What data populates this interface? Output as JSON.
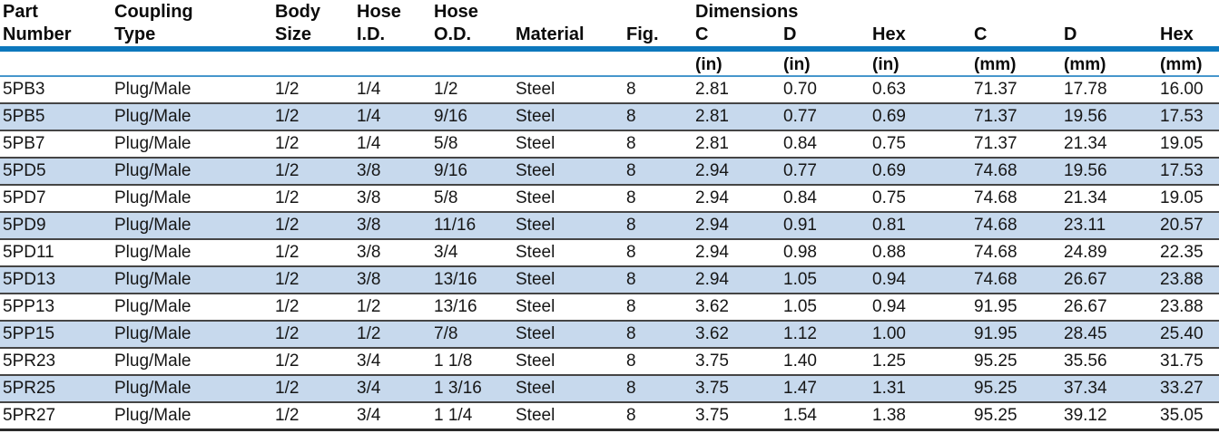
{
  "table": {
    "group_header": "Dimensions",
    "columns": [
      {
        "id": "part-number",
        "line1": "Part",
        "line2": "Number",
        "unit": ""
      },
      {
        "id": "coupling-type",
        "line1": "Coupling",
        "line2": "Type",
        "unit": ""
      },
      {
        "id": "body-size",
        "line1": "Body",
        "line2": "Size",
        "unit": ""
      },
      {
        "id": "hose-id",
        "line1": "Hose",
        "line2": "I.D.",
        "unit": ""
      },
      {
        "id": "hose-od",
        "line1": "Hose",
        "line2": "O.D.",
        "unit": ""
      },
      {
        "id": "material",
        "line1": "",
        "line2": "Material",
        "unit": ""
      },
      {
        "id": "fig",
        "line1": "",
        "line2": "Fig.",
        "unit": ""
      },
      {
        "id": "c-in",
        "line1": "",
        "line2": "C",
        "unit": "(in)"
      },
      {
        "id": "d-in",
        "line1": "",
        "line2": "D",
        "unit": "(in)"
      },
      {
        "id": "hex-in",
        "line1": "",
        "line2": "Hex",
        "unit": "(in)"
      },
      {
        "id": "c-mm",
        "line1": "",
        "line2": "C",
        "unit": "(mm)"
      },
      {
        "id": "d-mm",
        "line1": "",
        "line2": "D",
        "unit": "(mm)"
      },
      {
        "id": "hex-mm",
        "line1": "",
        "line2": "Hex",
        "unit": "(mm)"
      }
    ],
    "rows": [
      [
        "5PB3",
        "Plug/Male",
        "1/2",
        "1/4",
        "1/2",
        "Steel",
        "8",
        "2.81",
        "0.70",
        "0.63",
        "71.37",
        "17.78",
        "16.00"
      ],
      [
        "5PB5",
        "Plug/Male",
        "1/2",
        "1/4",
        "9/16",
        "Steel",
        "8",
        "2.81",
        "0.77",
        "0.69",
        "71.37",
        "19.56",
        "17.53"
      ],
      [
        "5PB7",
        "Plug/Male",
        "1/2",
        "1/4",
        "5/8",
        "Steel",
        "8",
        "2.81",
        "0.84",
        "0.75",
        "71.37",
        "21.34",
        "19.05"
      ],
      [
        "5PD5",
        "Plug/Male",
        "1/2",
        "3/8",
        "9/16",
        "Steel",
        "8",
        "2.94",
        "0.77",
        "0.69",
        "74.68",
        "19.56",
        "17.53"
      ],
      [
        "5PD7",
        "Plug/Male",
        "1/2",
        "3/8",
        "5/8",
        "Steel",
        "8",
        "2.94",
        "0.84",
        "0.75",
        "74.68",
        "21.34",
        "19.05"
      ],
      [
        "5PD9",
        "Plug/Male",
        "1/2",
        "3/8",
        "11/16",
        "Steel",
        "8",
        "2.94",
        "0.91",
        "0.81",
        "74.68",
        "23.11",
        "20.57"
      ],
      [
        "5PD11",
        "Plug/Male",
        "1/2",
        "3/8",
        "3/4",
        "Steel",
        "8",
        "2.94",
        "0.98",
        "0.88",
        "74.68",
        "24.89",
        "22.35"
      ],
      [
        "5PD13",
        "Plug/Male",
        "1/2",
        "3/8",
        "13/16",
        "Steel",
        "8",
        "2.94",
        "1.05",
        "0.94",
        "74.68",
        "26.67",
        "23.88"
      ],
      [
        "5PP13",
        "Plug/Male",
        "1/2",
        "1/2",
        "13/16",
        "Steel",
        "8",
        "3.62",
        "1.05",
        "0.94",
        "91.95",
        "26.67",
        "23.88"
      ],
      [
        "5PP15",
        "Plug/Male",
        "1/2",
        "1/2",
        "7/8",
        "Steel",
        "8",
        "3.62",
        "1.12",
        "1.00",
        "91.95",
        "28.45",
        "25.40"
      ],
      [
        "5PR23",
        "Plug/Male",
        "1/2",
        "3/4",
        "1 1/8",
        "Steel",
        "8",
        "3.75",
        "1.40",
        "1.25",
        "95.25",
        "35.56",
        "31.75"
      ],
      [
        "5PR25",
        "Plug/Male",
        "1/2",
        "3/4",
        "1 3/16",
        "Steel",
        "8",
        "3.75",
        "1.47",
        "1.31",
        "95.25",
        "37.34",
        "33.27"
      ],
      [
        "5PR27",
        "Plug/Male",
        "1/2",
        "3/4",
        "1 1/4",
        "Steel",
        "8",
        "3.75",
        "1.54",
        "1.38",
        "95.25",
        "39.12",
        "35.05"
      ]
    ]
  },
  "colors": {
    "header_bar_blue": "#0d78bd",
    "thin_rule_blue": "#4796cc",
    "row_stripe_blue": "#c7d9ed",
    "row_separator": "#454545",
    "text": "#111111"
  }
}
